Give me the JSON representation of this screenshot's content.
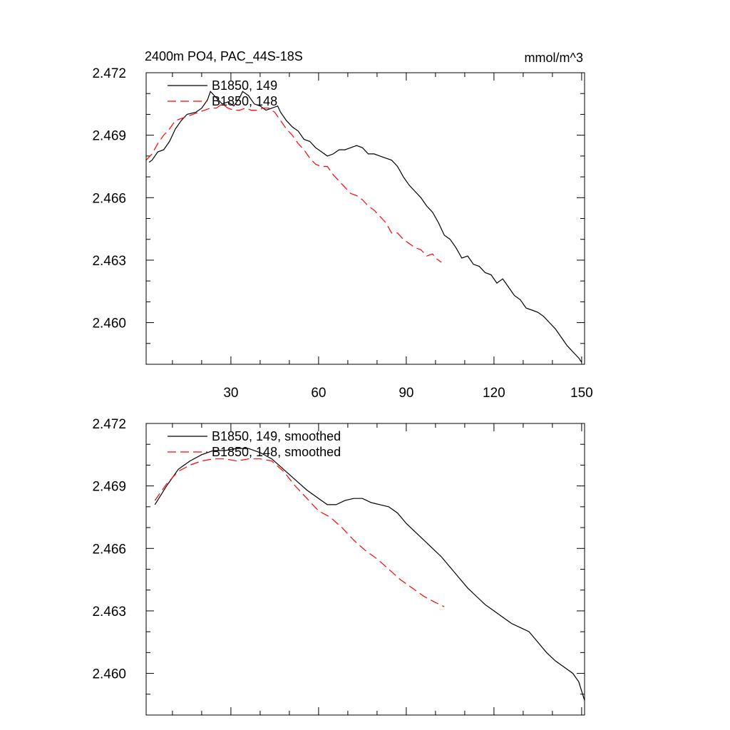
{
  "chart_data": [
    {
      "type": "line",
      "title": "2400m PO4, PAC_44S-18S",
      "units": "mmol/m^3",
      "xlabel": "",
      "ylabel": "",
      "xlim": [
        1,
        151
      ],
      "ylim": [
        2.458,
        2.472
      ],
      "x_ticks": [
        30,
        60,
        90,
        120,
        150
      ],
      "x_tick_labels": [
        "30",
        "60",
        "90",
        "120",
        "150"
      ],
      "y_ticks": [
        2.46,
        2.463,
        2.466,
        2.469,
        2.472
      ],
      "y_tick_labels": [
        "2.460",
        "2.463",
        "2.466",
        "2.469",
        "2.472"
      ],
      "grid": false,
      "legend_position": "top-left",
      "series": [
        {
          "name": "B1850, 149",
          "color": "#000000",
          "dash": "solid",
          "points": [
            [
              2,
              2.4677
            ],
            [
              3,
              2.4678
            ],
            [
              5,
              2.4682
            ],
            [
              7,
              2.4683
            ],
            [
              9,
              2.4687
            ],
            [
              11,
              2.4693
            ],
            [
              13,
              2.4697
            ],
            [
              15,
              2.47
            ],
            [
              18,
              2.4701
            ],
            [
              20,
              2.4703
            ],
            [
              22,
              2.4707
            ],
            [
              23,
              2.4711
            ],
            [
              25,
              2.4708
            ],
            [
              27,
              2.4705
            ],
            [
              29,
              2.4706
            ],
            [
              31,
              2.4704
            ],
            [
              33,
              2.4708
            ],
            [
              34,
              2.4711
            ],
            [
              36,
              2.4709
            ],
            [
              38,
              2.4705
            ],
            [
              40,
              2.4704
            ],
            [
              42,
              2.4702
            ],
            [
              44,
              2.4703
            ],
            [
              46,
              2.4704
            ],
            [
              47,
              2.4701
            ],
            [
              49,
              2.4697
            ],
            [
              51,
              2.4694
            ],
            [
              53,
              2.4692
            ],
            [
              55,
              2.4688
            ],
            [
              57,
              2.4687
            ],
            [
              59,
              2.4684
            ],
            [
              61,
              2.4682
            ],
            [
              63,
              2.468
            ],
            [
              65,
              2.4681
            ],
            [
              67,
              2.4683
            ],
            [
              69,
              2.4683
            ],
            [
              71,
              2.4684
            ],
            [
              73,
              2.4685
            ],
            [
              75,
              2.4684
            ],
            [
              77,
              2.4681
            ],
            [
              79,
              2.4681
            ],
            [
              81,
              2.468
            ],
            [
              83,
              2.4679
            ],
            [
              85,
              2.4678
            ],
            [
              87,
              2.4675
            ],
            [
              89,
              2.467
            ],
            [
              91,
              2.4666
            ],
            [
              93,
              2.4663
            ],
            [
              95,
              2.466
            ],
            [
              97,
              2.4656
            ],
            [
              99,
              2.4653
            ],
            [
              101,
              2.4648
            ],
            [
              103,
              2.4642
            ],
            [
              105,
              2.464
            ],
            [
              107,
              2.4636
            ],
            [
              109,
              2.4631
            ],
            [
              111,
              2.4632
            ],
            [
              113,
              2.4628
            ],
            [
              115,
              2.4627
            ],
            [
              117,
              2.4624
            ],
            [
              119,
              2.4623
            ],
            [
              121,
              2.4619
            ],
            [
              123,
              2.4621
            ],
            [
              125,
              2.4617
            ],
            [
              127,
              2.4613
            ],
            [
              129,
              2.4611
            ],
            [
              131,
              2.4607
            ],
            [
              133,
              2.4606
            ],
            [
              135,
              2.4605
            ],
            [
              137,
              2.4603
            ],
            [
              139,
              2.46
            ],
            [
              141,
              2.4597
            ],
            [
              143,
              2.4593
            ],
            [
              145,
              2.4589
            ],
            [
              147,
              2.4586
            ],
            [
              149,
              2.4583
            ],
            [
              150,
              2.4581
            ]
          ]
        },
        {
          "name": "B1850, 148",
          "color": "#ff0000",
          "dash": "dashed",
          "points": [
            [
              1,
              2.4678
            ],
            [
              3,
              2.4681
            ],
            [
              5,
              2.4686
            ],
            [
              7,
              2.469
            ],
            [
              9,
              2.4693
            ],
            [
              11,
              2.4697
            ],
            [
              13,
              2.4698
            ],
            [
              15,
              2.4699
            ],
            [
              17,
              2.47
            ],
            [
              19,
              2.4701
            ],
            [
              21,
              2.4702
            ],
            [
              23,
              2.4703
            ],
            [
              25,
              2.4703
            ],
            [
              27,
              2.4705
            ],
            [
              29,
              2.4703
            ],
            [
              31,
              2.4702
            ],
            [
              33,
              2.4702
            ],
            [
              35,
              2.4703
            ],
            [
              37,
              2.4702
            ],
            [
              39,
              2.4702
            ],
            [
              41,
              2.4703
            ],
            [
              43,
              2.4703
            ],
            [
              45,
              2.4701
            ],
            [
              47,
              2.4697
            ],
            [
              49,
              2.4693
            ],
            [
              51,
              2.469
            ],
            [
              53,
              2.4686
            ],
            [
              55,
              2.4683
            ],
            [
              57,
              2.4679
            ],
            [
              59,
              2.4676
            ],
            [
              61,
              2.4675
            ],
            [
              63,
              2.4675
            ],
            [
              65,
              2.4671
            ],
            [
              67,
              2.4668
            ],
            [
              69,
              2.4665
            ],
            [
              71,
              2.4662
            ],
            [
              73,
              2.4661
            ],
            [
              75,
              2.4659
            ],
            [
              77,
              2.4656
            ],
            [
              79,
              2.4654
            ],
            [
              81,
              2.4651
            ],
            [
              83,
              2.4648
            ],
            [
              85,
              2.4643
            ],
            [
              87,
              2.4643
            ],
            [
              89,
              2.464
            ],
            [
              91,
              2.4638
            ],
            [
              93,
              2.4636
            ],
            [
              95,
              2.4635
            ],
            [
              97,
              2.4632
            ],
            [
              99,
              2.4633
            ],
            [
              100,
              2.4631
            ],
            [
              101,
              2.463
            ],
            [
              102,
              2.4629
            ]
          ]
        }
      ]
    },
    {
      "type": "line",
      "title": "",
      "xlabel": "",
      "ylabel": "",
      "xlim": [
        1,
        151
      ],
      "ylim": [
        2.458,
        2.472
      ],
      "x_ticks": [
        30,
        60,
        90,
        120,
        150
      ],
      "y_ticks": [
        2.46,
        2.463,
        2.466,
        2.469,
        2.472
      ],
      "y_tick_labels": [
        "2.460",
        "2.463",
        "2.466",
        "2.469",
        "2.472"
      ],
      "grid": false,
      "legend_position": "top-left",
      "series": [
        {
          "name": "B1850, 149, smoothed",
          "color": "#000000",
          "dash": "solid",
          "points": [
            [
              4,
              2.4681
            ],
            [
              8,
              2.469
            ],
            [
              12,
              2.4698
            ],
            [
              16,
              2.4702
            ],
            [
              20,
              2.4705
            ],
            [
              24,
              2.4707
            ],
            [
              28,
              2.4707
            ],
            [
              32,
              2.4708
            ],
            [
              36,
              2.4708
            ],
            [
              40,
              2.4706
            ],
            [
              44,
              2.4703
            ],
            [
              48,
              2.4698
            ],
            [
              52,
              2.4693
            ],
            [
              56,
              2.4688
            ],
            [
              60,
              2.4684
            ],
            [
              63,
              2.4681
            ],
            [
              66,
              2.4681
            ],
            [
              69,
              2.4683
            ],
            [
              72,
              2.4684
            ],
            [
              75,
              2.4684
            ],
            [
              78,
              2.4682
            ],
            [
              81,
              2.4681
            ],
            [
              84,
              2.468
            ],
            [
              87,
              2.4677
            ],
            [
              90,
              2.4672
            ],
            [
              93,
              2.4668
            ],
            [
              96,
              2.4664
            ],
            [
              99,
              2.466
            ],
            [
              102,
              2.4656
            ],
            [
              105,
              2.4651
            ],
            [
              108,
              2.4646
            ],
            [
              111,
              2.4641
            ],
            [
              114,
              2.4637
            ],
            [
              117,
              2.4633
            ],
            [
              120,
              2.463
            ],
            [
              123,
              2.4627
            ],
            [
              126,
              2.4624
            ],
            [
              129,
              2.4622
            ],
            [
              132,
              2.462
            ],
            [
              135,
              2.4615
            ],
            [
              138,
              2.461
            ],
            [
              141,
              2.4606
            ],
            [
              144,
              2.4603
            ],
            [
              147,
              2.46
            ],
            [
              149,
              2.4596
            ],
            [
              151,
              2.4587
            ]
          ]
        },
        {
          "name": "B1850, 148, smoothed",
          "color": "#ff0000",
          "dash": "dashed",
          "points": [
            [
              4,
              2.4683
            ],
            [
              8,
              2.4691
            ],
            [
              12,
              2.4697
            ],
            [
              16,
              2.47
            ],
            [
              20,
              2.4702
            ],
            [
              24,
              2.4703
            ],
            [
              28,
              2.4703
            ],
            [
              32,
              2.4702
            ],
            [
              36,
              2.4703
            ],
            [
              40,
              2.4703
            ],
            [
              44,
              2.4702
            ],
            [
              48,
              2.4697
            ],
            [
              52,
              2.469
            ],
            [
              56,
              2.4684
            ],
            [
              60,
              2.4678
            ],
            [
              64,
              2.4675
            ],
            [
              68,
              2.467
            ],
            [
              72,
              2.4664
            ],
            [
              76,
              2.4659
            ],
            [
              80,
              2.4655
            ],
            [
              84,
              2.465
            ],
            [
              88,
              2.4645
            ],
            [
              92,
              2.4641
            ],
            [
              96,
              2.4637
            ],
            [
              100,
              2.4634
            ],
            [
              103,
              2.4632
            ]
          ]
        }
      ]
    }
  ]
}
